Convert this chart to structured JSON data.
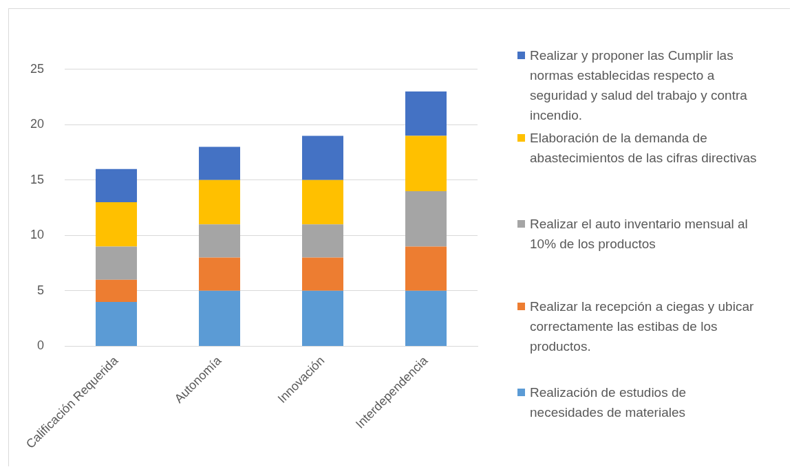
{
  "chart_data": {
    "type": "bar",
    "stacked": true,
    "categories": [
      "Calificación Requerida",
      "Autonomía",
      "Innovación",
      "Interdependencia"
    ],
    "series": [
      {
        "name": "Realización de estudios de necesidades de materiales",
        "color": "#5b9bd5",
        "values": [
          4,
          5,
          5,
          5
        ]
      },
      {
        "name": "Realizar la recepción a ciegas y ubicar correctamente las estibas de los productos.",
        "color": "#ed7d31",
        "values": [
          2,
          3,
          3,
          4
        ]
      },
      {
        "name": "Realizar el auto inventario mensual al 10% de los productos",
        "color": "#a5a5a5",
        "values": [
          3,
          3,
          3,
          5
        ]
      },
      {
        "name": "Elaboración de la demanda de abastecimientos de las cifras directivas",
        "color": "#ffc000",
        "values": [
          4,
          4,
          4,
          5
        ]
      },
      {
        "name": "Realizar y proponer las Cumplir las normas establecidas respecto a seguridad y salud del trabajo y contra incendio.",
        "color": "#4472c4",
        "values": [
          3,
          3,
          4,
          4
        ]
      }
    ],
    "ylim": [
      0,
      25
    ],
    "yticks": [
      0,
      5,
      10,
      15,
      20,
      25
    ],
    "grid": "y",
    "legend": "right"
  }
}
